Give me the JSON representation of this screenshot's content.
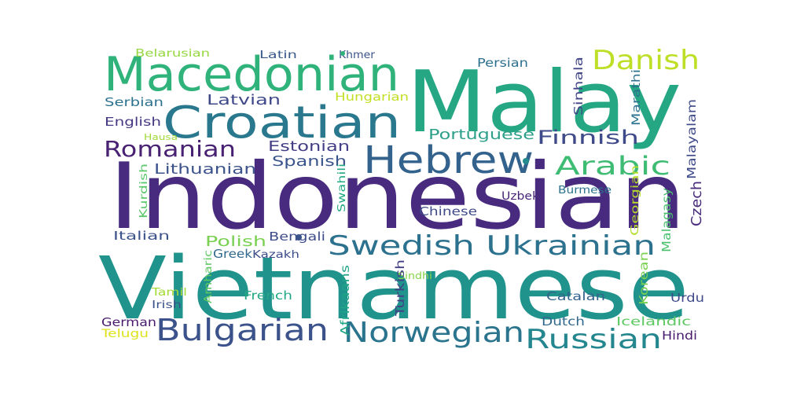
{
  "word_cloud": {
    "words": [
      {
        "text": "Indonesian",
        "color": "#482a7e",
        "rotated": false
      },
      {
        "text": "Vietnamese",
        "color": "#20938c",
        "rotated": false
      },
      {
        "text": "Malay",
        "color": "#26a784",
        "rotated": false
      },
      {
        "text": "Macedonian",
        "color": "#2fb37b",
        "rotated": false
      },
      {
        "text": "Croatian",
        "color": "#2a788e",
        "rotated": false
      },
      {
        "text": "Hebrew",
        "color": "#33628d",
        "rotated": false
      },
      {
        "text": "Swedish Ukrainian",
        "color": "#2c718e",
        "rotated": false
      },
      {
        "text": "Bulgarian",
        "color": "#3b528b",
        "rotated": false
      },
      {
        "text": "Norwegian",
        "color": "#2b748e",
        "rotated": false
      },
      {
        "text": "Russian",
        "color": "#24868e",
        "rotated": false
      },
      {
        "text": "Danish",
        "color": "#bddf26",
        "rotated": false
      },
      {
        "text": "Arabic",
        "color": "#3fbc73",
        "rotated": false
      },
      {
        "text": "Romanian",
        "color": "#482173",
        "rotated": false
      },
      {
        "text": "Finnish",
        "color": "#3e4a89",
        "rotated": false
      },
      {
        "text": "Portuguese",
        "color": "#2e9f8a",
        "rotated": false
      },
      {
        "text": "Latvian",
        "color": "#3f4889",
        "rotated": false
      },
      {
        "text": "Estonian",
        "color": "#433e85",
        "rotated": false
      },
      {
        "text": "Spanish",
        "color": "#3a548c",
        "rotated": false
      },
      {
        "text": "Lithuanian",
        "color": "#3b528b",
        "rotated": false
      },
      {
        "text": "Polish",
        "color": "#7ad151",
        "rotated": false
      },
      {
        "text": "Bengali",
        "color": "#3e4c8a",
        "rotated": false
      },
      {
        "text": "Serbian",
        "color": "#2c728e",
        "rotated": false
      },
      {
        "text": "English",
        "color": "#453781",
        "rotated": false
      },
      {
        "text": "Belarusian",
        "color": "#95d840",
        "rotated": false
      },
      {
        "text": "Latin",
        "color": "#38598c",
        "rotated": false
      },
      {
        "text": "Khmer",
        "color": "#3b528b",
        "rotated": false
      },
      {
        "text": "Persian",
        "color": "#2d708e",
        "rotated": false
      },
      {
        "text": "Hungarian",
        "color": "#c2df23",
        "rotated": false
      },
      {
        "text": "Hausa",
        "color": "#a0da39",
        "rotated": false
      },
      {
        "text": "Italian",
        "color": "#3b528b",
        "rotated": false
      },
      {
        "text": "Greek",
        "color": "#31688e",
        "rotated": false
      },
      {
        "text": "Kazakh",
        "color": "#3d4d8a",
        "rotated": false
      },
      {
        "text": "Chinese",
        "color": "#3e4a89",
        "rotated": false
      },
      {
        "text": "Uzbek",
        "color": "#482677",
        "rotated": false
      },
      {
        "text": "Burmese",
        "color": "#2c728e",
        "rotated": false
      },
      {
        "text": "French",
        "color": "#22a785",
        "rotated": false
      },
      {
        "text": "Catalan",
        "color": "#33638d",
        "rotated": false
      },
      {
        "text": "Urdu",
        "color": "#3e4989",
        "rotated": false
      },
      {
        "text": "Tamil",
        "color": "#a5db36",
        "rotated": false
      },
      {
        "text": "Irish",
        "color": "#3b528b",
        "rotated": false
      },
      {
        "text": "Sindhi",
        "color": "#86d549",
        "rotated": false
      },
      {
        "text": "Dutch",
        "color": "#31688e",
        "rotated": false
      },
      {
        "text": "German",
        "color": "#481a6c",
        "rotated": false
      },
      {
        "text": "Telugu",
        "color": "#dde318",
        "rotated": false
      },
      {
        "text": "Icelandic",
        "color": "#5ec962",
        "rotated": false
      },
      {
        "text": "Hindi",
        "color": "#481b6d",
        "rotated": false
      },
      {
        "text": "Sinhala",
        "color": "#414487",
        "rotated": true
      },
      {
        "text": "Marathi",
        "color": "#2c728e",
        "rotated": true
      },
      {
        "text": "Malayalam",
        "color": "#3e4a89",
        "rotated": true
      },
      {
        "text": "Kurdish",
        "color": "#56c667",
        "rotated": true
      },
      {
        "text": "Swahili",
        "color": "#22a884",
        "rotated": true
      },
      {
        "text": "Georgian",
        "color": "#b5de2b",
        "rotated": true
      },
      {
        "text": "Malagasy",
        "color": "#4ac16d",
        "rotated": true
      },
      {
        "text": "Czech",
        "color": "#472a7a",
        "rotated": true
      },
      {
        "text": "Amharic",
        "color": "#5ec962",
        "rotated": true
      },
      {
        "text": "Afrikaans",
        "color": "#20a486",
        "rotated": true
      },
      {
        "text": "Turkish",
        "color": "#424086",
        "rotated": true
      },
      {
        "text": "Korean",
        "color": "#7ad151",
        "rotated": true
      }
    ],
    "dots": [
      {
        "color": "#238a8d"
      },
      {
        "color": "#3b528b"
      },
      {
        "color": "#2fb37b"
      }
    ]
  }
}
